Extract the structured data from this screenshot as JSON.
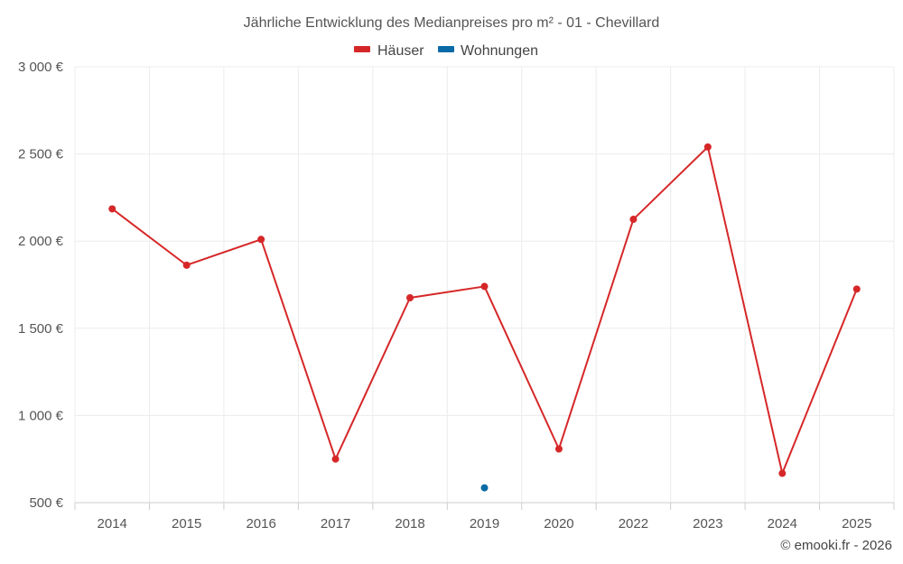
{
  "chart_data": {
    "type": "line",
    "title": "Jährliche Entwicklung des Medianpreises pro m² - 01 - Chevillard",
    "categories": [
      "2014",
      "2015",
      "2016",
      "2017",
      "2018",
      "2019",
      "2020",
      "2022",
      "2023",
      "2024",
      "2025"
    ],
    "series": [
      {
        "name": "Häuser",
        "color": "#d62728",
        "values": [
          2185,
          1862,
          2010,
          750,
          1675,
          1740,
          808,
          2125,
          2540,
          668,
          1725
        ]
      },
      {
        "name": "Wohnungen",
        "color": "#0a6aa6",
        "values": [
          null,
          null,
          null,
          null,
          null,
          585,
          null,
          null,
          null,
          null,
          null
        ]
      }
    ],
    "ylim": [
      500,
      3000
    ],
    "yticks": [
      500,
      1000,
      1500,
      2000,
      2500,
      3000
    ],
    "ytick_labels": [
      "500 €",
      "1 000 €",
      "1 500 €",
      "2 000 €",
      "2 500 €",
      "3 000 €"
    ],
    "xlabel": "",
    "ylabel": "",
    "grid": true,
    "legend_position": "top-center"
  },
  "credit": "© emooki.fr - 2026"
}
